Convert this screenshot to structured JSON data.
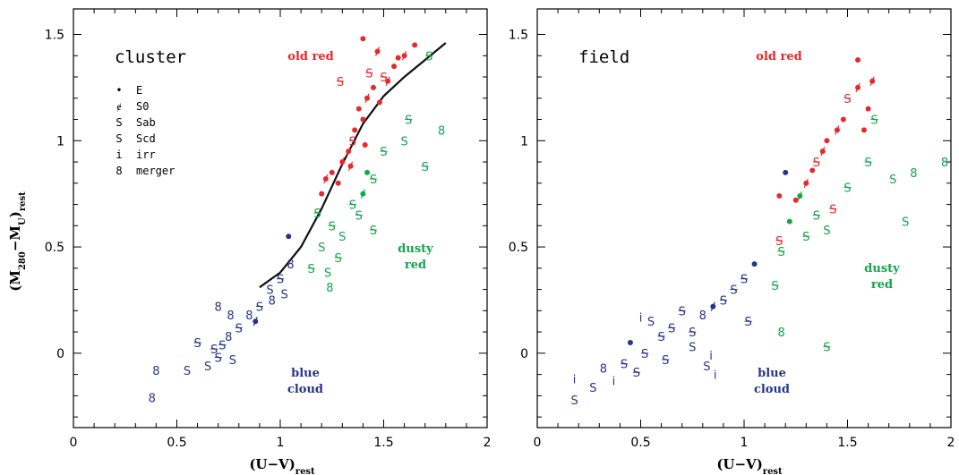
{
  "colors": {
    "red": "#e8282c",
    "green": "#13a64b",
    "blue": "#28348a",
    "curve": "#111111"
  },
  "y_axis_label": {
    "main": "(M",
    "sub1": "280",
    "mid": "−M",
    "sub2": "U",
    "close": ")",
    "sub3": "rest"
  },
  "x_axis_label": {
    "main": "(U−V)",
    "sub": "rest"
  },
  "legend": [
    {
      "glyph": "•",
      "label": "E"
    },
    {
      "glyph": "ɇ",
      "label": "S0"
    },
    {
      "glyph": "S",
      "label": "Sab"
    },
    {
      "glyph": "S",
      "label": "Scd"
    },
    {
      "glyph": "i",
      "label": "irr"
    },
    {
      "glyph": "8",
      "label": "merger"
    }
  ],
  "panels": [
    {
      "title": "cluster",
      "labels": {
        "old_red": "old red",
        "dusty_red_1": "dusty",
        "dusty_red_2": "red",
        "blue_cloud_1": "blue",
        "blue_cloud_2": "cloud"
      }
    },
    {
      "title": "field",
      "labels": {
        "old_red": "old red",
        "dusty_red_1": "dusty",
        "dusty_red_2": "red",
        "blue_cloud_1": "blue",
        "blue_cloud_2": "cloud"
      }
    }
  ],
  "chart_data": [
    {
      "type": "scatter",
      "title": "cluster",
      "xlabel": "(U−V)rest",
      "ylabel": "(M280−MU)rest",
      "xlim": [
        0,
        2
      ],
      "ylim": [
        -0.35,
        1.62
      ],
      "xticks": [
        "0",
        "0.5",
        "1",
        "1.5",
        "2"
      ],
      "yticks": [
        "0",
        "0.5",
        "1",
        "1.5"
      ],
      "grid": false,
      "curve": {
        "x": [
          0.9,
          1.0,
          1.1,
          1.2,
          1.3,
          1.4,
          1.5,
          1.6,
          1.7,
          1.8
        ],
        "y": [
          0.31,
          0.38,
          0.5,
          0.68,
          0.89,
          1.08,
          1.21,
          1.3,
          1.38,
          1.46
        ]
      },
      "series": [
        {
          "name": "old red",
          "points": [
            [
              1.25,
              0.85,
              "E"
            ],
            [
              1.3,
              0.9,
              "S0"
            ],
            [
              1.35,
              1.0,
              "Sab"
            ],
            [
              1.4,
              1.1,
              "E"
            ],
            [
              1.42,
              1.2,
              "S0"
            ],
            [
              1.45,
              1.25,
              "E"
            ],
            [
              1.5,
              1.3,
              "Sab"
            ],
            [
              1.55,
              1.35,
              "E"
            ],
            [
              1.6,
              1.4,
              "S0"
            ],
            [
              1.65,
              1.45,
              "E"
            ],
            [
              1.38,
              1.15,
              "E"
            ],
            [
              1.33,
              0.95,
              "S0"
            ],
            [
              1.28,
              0.8,
              "E"
            ],
            [
              1.22,
              0.82,
              "S0"
            ],
            [
              1.36,
              1.05,
              "E"
            ],
            [
              1.43,
              1.32,
              "Sab"
            ],
            [
              1.48,
              1.18,
              "E"
            ],
            [
              1.52,
              1.28,
              "S0"
            ],
            [
              1.57,
              1.39,
              "E"
            ],
            [
              1.29,
              1.28,
              "Sab"
            ],
            [
              1.4,
              1.48,
              "E"
            ],
            [
              1.47,
              1.42,
              "S0"
            ],
            [
              1.2,
              0.75,
              "E"
            ],
            [
              1.34,
              0.88,
              "S0"
            ],
            [
              1.41,
              0.98,
              "E"
            ]
          ]
        },
        {
          "name": "dusty red",
          "points": [
            [
              1.25,
              0.6,
              "Sab"
            ],
            [
              1.3,
              0.55,
              "Scd"
            ],
            [
              1.35,
              0.7,
              "Sab"
            ],
            [
              1.4,
              0.75,
              "S0"
            ],
            [
              1.45,
              0.82,
              "Sab"
            ],
            [
              1.2,
              0.5,
              "Scd"
            ],
            [
              1.15,
              0.4,
              "Sab"
            ],
            [
              1.5,
              0.95,
              "Sab"
            ],
            [
              1.6,
              1.0,
              "Scd"
            ],
            [
              1.7,
              0.88,
              "Sab"
            ],
            [
              1.78,
              1.05,
              "merger"
            ],
            [
              1.23,
              0.38,
              "Scd"
            ],
            [
              1.24,
              0.31,
              "merger"
            ],
            [
              1.38,
              0.65,
              "Sab"
            ],
            [
              1.42,
              0.85,
              "E"
            ],
            [
              1.28,
              0.45,
              "Sab"
            ],
            [
              1.62,
              1.1,
              "Sab"
            ],
            [
              1.72,
              1.4,
              "Sab"
            ],
            [
              1.18,
              0.66,
              "Sab"
            ],
            [
              1.45,
              0.58,
              "Sab"
            ]
          ]
        },
        {
          "name": "blue cloud",
          "points": [
            [
              0.4,
              -0.08,
              "merger"
            ],
            [
              0.38,
              -0.21,
              "merger"
            ],
            [
              0.55,
              -0.08,
              "Scd"
            ],
            [
              0.6,
              0.05,
              "Sab"
            ],
            [
              0.65,
              -0.06,
              "Scd"
            ],
            [
              0.7,
              -0.02,
              "Sab"
            ],
            [
              0.75,
              0.08,
              "merger"
            ],
            [
              0.8,
              0.12,
              "Sab"
            ],
            [
              0.85,
              0.18,
              "merger"
            ],
            [
              0.9,
              0.22,
              "Sab"
            ],
            [
              0.95,
              0.3,
              "Scd"
            ],
            [
              1.0,
              0.35,
              "Sab"
            ],
            [
              1.05,
              0.42,
              "merger"
            ],
            [
              0.72,
              0.04,
              "Sab"
            ],
            [
              0.88,
              0.15,
              "S0"
            ],
            [
              0.96,
              0.25,
              "merger"
            ],
            [
              0.77,
              -0.03,
              "Scd"
            ],
            [
              1.02,
              0.28,
              "Scd"
            ],
            [
              0.68,
              0.02,
              "Sab"
            ],
            [
              1.04,
              0.55,
              "E"
            ],
            [
              0.7,
              0.22,
              "merger"
            ],
            [
              0.76,
              0.18,
              "merger"
            ]
          ]
        }
      ]
    },
    {
      "type": "scatter",
      "title": "field",
      "xlabel": "(U−V)rest",
      "ylabel": "",
      "xlim": [
        0,
        2
      ],
      "ylim": [
        -0.35,
        1.62
      ],
      "xticks": [
        "0",
        "0.5",
        "1",
        "1.5",
        "2"
      ],
      "yticks": [
        "0",
        "0.5",
        "1",
        "1.5"
      ],
      "grid": false,
      "series": [
        {
          "name": "old red",
          "points": [
            [
              1.5,
              1.2,
              "Sab"
            ],
            [
              1.55,
              1.25,
              "S0"
            ],
            [
              1.6,
              1.15,
              "E"
            ],
            [
              1.45,
              1.05,
              "S0"
            ],
            [
              1.4,
              1.0,
              "E"
            ],
            [
              1.35,
              0.9,
              "Sab"
            ],
            [
              1.3,
              0.8,
              "S0"
            ],
            [
              1.25,
              0.72,
              "E"
            ],
            [
              1.55,
              1.38,
              "E"
            ],
            [
              1.62,
              1.28,
              "S0"
            ],
            [
              1.48,
              1.1,
              "E"
            ],
            [
              1.38,
              0.95,
              "S0"
            ],
            [
              1.17,
              0.74,
              "E"
            ],
            [
              1.17,
              0.53,
              "Sab"
            ],
            [
              1.33,
              0.86,
              "E"
            ],
            [
              1.43,
              0.68,
              "Sab"
            ],
            [
              1.58,
              1.05,
              "E"
            ]
          ]
        },
        {
          "name": "dusty red",
          "points": [
            [
              1.22,
              0.62,
              "E"
            ],
            [
              1.3,
              0.55,
              "Sab"
            ],
            [
              1.4,
              0.58,
              "Scd"
            ],
            [
              1.5,
              0.78,
              "Sab"
            ],
            [
              1.6,
              0.9,
              "Sab"
            ],
            [
              1.72,
              0.82,
              "Scd"
            ],
            [
              1.78,
              0.62,
              "Scd"
            ],
            [
              1.82,
              0.85,
              "merger"
            ],
            [
              1.97,
              0.9,
              "merger"
            ],
            [
              1.18,
              0.48,
              "Sab"
            ],
            [
              1.15,
              0.32,
              "Sab"
            ],
            [
              1.18,
              0.1,
              "merger"
            ],
            [
              1.4,
              0.03,
              "Sab"
            ],
            [
              1.63,
              1.1,
              "Sab"
            ],
            [
              1.27,
              0.74,
              "S0"
            ],
            [
              1.35,
              0.65,
              "Sab"
            ]
          ]
        },
        {
          "name": "blue cloud",
          "points": [
            [
              0.18,
              -0.22,
              "Scd"
            ],
            [
              0.18,
              -0.12,
              "irr"
            ],
            [
              0.27,
              -0.16,
              "Scd"
            ],
            [
              0.32,
              -0.07,
              "merger"
            ],
            [
              0.37,
              -0.13,
              "irr"
            ],
            [
              0.42,
              -0.05,
              "Sab"
            ],
            [
              0.48,
              -0.09,
              "Sab"
            ],
            [
              0.52,
              0.0,
              "Sab"
            ],
            [
              0.55,
              0.15,
              "Scd"
            ],
            [
              0.6,
              0.08,
              "Sab"
            ],
            [
              0.65,
              0.12,
              "Sab"
            ],
            [
              0.7,
              0.2,
              "Sab"
            ],
            [
              0.75,
              0.1,
              "Sab"
            ],
            [
              0.8,
              0.18,
              "merger"
            ],
            [
              0.85,
              0.22,
              "S0"
            ],
            [
              0.9,
              0.25,
              "Sab"
            ],
            [
              0.95,
              0.3,
              "Sab"
            ],
            [
              1.0,
              0.35,
              "Sab"
            ],
            [
              1.05,
              0.42,
              "E"
            ],
            [
              0.5,
              0.17,
              "irr"
            ],
            [
              0.82,
              -0.06,
              "Scd"
            ],
            [
              0.86,
              -0.1,
              "irr"
            ],
            [
              0.84,
              -0.01,
              "irr"
            ],
            [
              0.75,
              0.03,
              "Scd"
            ],
            [
              1.02,
              0.15,
              "Sab"
            ],
            [
              0.45,
              0.05,
              "E"
            ],
            [
              0.62,
              -0.03,
              "Sab"
            ],
            [
              1.2,
              0.85,
              "E"
            ]
          ]
        }
      ]
    }
  ]
}
